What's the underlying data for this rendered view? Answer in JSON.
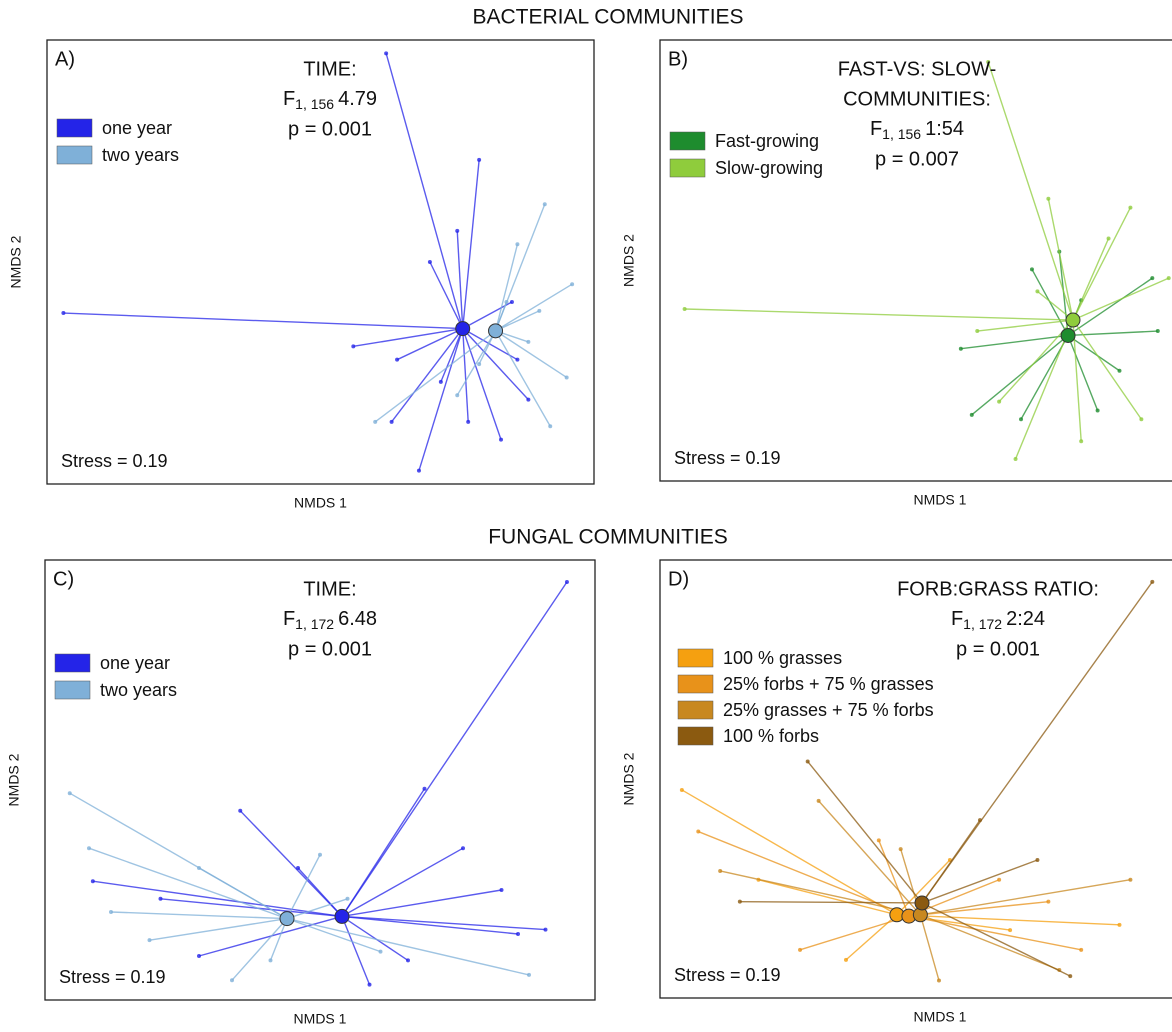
{
  "section_titles": [
    "BACTERIAL COMMUNITIES",
    "FUNGAL COMMUNITIES"
  ],
  "chart_data": [
    {
      "type": "scatter",
      "panel_label": "A)",
      "title": [
        "TIME:"
      ],
      "statistic": {
        "symbol": "F",
        "df": "1, 156",
        "value": "4.79"
      },
      "p_value": "p = 0.001",
      "stress": "Stress = 0.19",
      "x_label": "NMDS 1",
      "y_label": "NMDS 2",
      "xlim": [
        0,
        100
      ],
      "ylim": [
        0,
        100
      ],
      "series": [
        {
          "name": "one year",
          "color": "#2424e8",
          "centroid": {
            "x": 76,
            "y": 35
          },
          "x": [
            62,
            3,
            68,
            56,
            70,
            77,
            83,
            86,
            72,
            79,
            64,
            75,
            85,
            63,
            88
          ],
          "y": [
            97,
            38.5,
            3,
            31,
            50,
            14,
            10,
            28,
            23,
            73,
            28,
            57,
            41,
            14,
            19
          ]
        },
        {
          "name": "two years",
          "color": "#7fb0d8",
          "centroid": {
            "x": 82,
            "y": 34.5
          },
          "x": [
            91,
            96,
            95,
            92,
            60,
            86,
            75,
            88,
            84,
            79,
            90
          ],
          "y": [
            63,
            45,
            24,
            13,
            14,
            54,
            20,
            32,
            41,
            27,
            39
          ]
        }
      ]
    },
    {
      "type": "scatter",
      "panel_label": "B)",
      "title": [
        "FAST-VS: SLOW-",
        "COMMUNITIES:"
      ],
      "statistic": {
        "symbol": "F",
        "df": "1, 156",
        "value": "1:54"
      },
      "p_value": "p = 0.007",
      "stress": "Stress = 0.19",
      "x_label": "NMDS 1",
      "y_label": "NMDS 2",
      "xlim": [
        0,
        100
      ],
      "ylim": [
        0,
        100
      ],
      "series": [
        {
          "name": "Fast-growing",
          "color": "#1e8c2e",
          "centroid": {
            "x": 74.6,
            "y": 33
          },
          "x": [
            57,
            66,
            90,
            91,
            68,
            80,
            55,
            84,
            73,
            77
          ],
          "y": [
            15,
            14,
            46,
            34,
            48,
            16,
            30,
            25,
            52,
            41
          ]
        },
        {
          "name": "Slow-growing",
          "color": "#8fcc3c",
          "centroid": {
            "x": 75.5,
            "y": 36.5
          },
          "x": [
            60,
            4.5,
            65,
            86,
            93,
            88,
            71,
            62,
            82,
            77,
            69,
            58
          ],
          "y": [
            95,
            39,
            5,
            62,
            46,
            14,
            64,
            18,
            55,
            9,
            43,
            34
          ]
        }
      ]
    },
    {
      "type": "scatter",
      "panel_label": "C)",
      "title": [
        "TIME:"
      ],
      "statistic": {
        "symbol": "F",
        "df": "1, 172",
        "value": "6.48"
      },
      "p_value": "p = 0.001",
      "stress": "Stress = 0.19",
      "x_label": "NMDS 1",
      "y_label": "NMDS 2",
      "xlim": [
        0,
        100
      ],
      "ylim": [
        0,
        100
      ],
      "series": [
        {
          "name": "one year",
          "color": "#2424e8",
          "centroid": {
            "x": 54,
            "y": 19
          },
          "x": [
            94.9,
            8.7,
            35.5,
            69,
            76,
            86,
            59,
            28,
            46,
            83,
            66,
            21,
            91
          ],
          "y": [
            95,
            27,
            43,
            48,
            34.5,
            15,
            3.5,
            10,
            30,
            25,
            9,
            23,
            16
          ]
        },
        {
          "name": "two years",
          "color": "#7fb0d8",
          "centroid": {
            "x": 44,
            "y": 18.5
          },
          "x": [
            4.5,
            8,
            19,
            50,
            61,
            28,
            41,
            88,
            12,
            55,
            34
          ],
          "y": [
            47,
            34.5,
            13.6,
            33,
            11,
            30,
            9,
            5.7,
            20,
            23,
            4.5
          ]
        }
      ]
    },
    {
      "type": "scatter",
      "panel_label": "D)",
      "title": [
        "FORB:GRASS RATIO:"
      ],
      "statistic": {
        "symbol": "F",
        "df": "1, 172",
        "value": "2:24"
      },
      "p_value": "p = 0.001",
      "stress": "Stress = 0.19",
      "x_label": "NMDS 1",
      "y_label": "NMDS 2",
      "xlim": [
        0,
        100
      ],
      "ylim": [
        0,
        100
      ],
      "series": [
        {
          "name": "100 % grasses",
          "color": "#f5a010",
          "centroid": {
            "x": 43.3,
            "y": 19
          },
          "x": [
            4,
            18,
            34,
            64,
            84,
            53
          ],
          "y": [
            47.5,
            27,
            8.7,
            15.5,
            16.7,
            31.5
          ]
        },
        {
          "name": "25% forbs + 75 % grasses",
          "color": "#e8921a",
          "centroid": {
            "x": 45.5,
            "y": 18.7
          },
          "x": [
            7,
            25.6,
            62,
            77,
            40,
            71
          ],
          "y": [
            38,
            11,
            27,
            11,
            36,
            22
          ]
        },
        {
          "name": "25% grasses + 75 % forbs",
          "color": "#c88820",
          "centroid": {
            "x": 47.6,
            "y": 19
          },
          "x": [
            11,
            29,
            51,
            73,
            86,
            44
          ],
          "y": [
            29,
            45,
            4,
            6.4,
            27,
            34
          ]
        },
        {
          "name": "100 % forbs",
          "color": "#8b5a10",
          "centroid": {
            "x": 47.9,
            "y": 21.7
          },
          "x": [
            90,
            27,
            75,
            58.5,
            14.6,
            69
          ],
          "y": [
            95,
            54,
            5,
            40.6,
            22,
            31.5
          ]
        }
      ]
    }
  ]
}
